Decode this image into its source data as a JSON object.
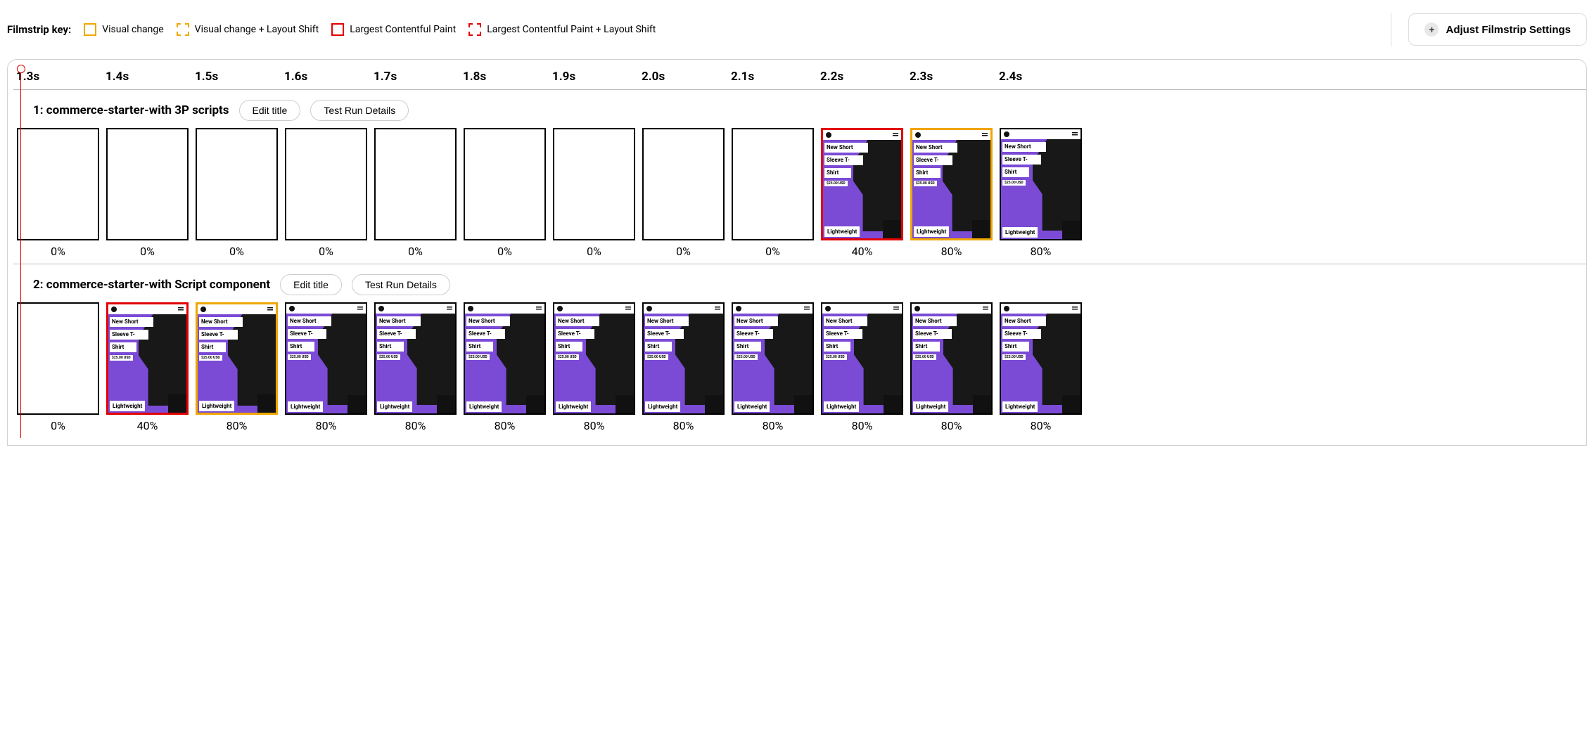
{
  "legend": {
    "title": "Filmstrip key:",
    "items": [
      {
        "label": "Visual change",
        "swatch": "swatch-orange-solid"
      },
      {
        "label": "Visual change + Layout Shift",
        "swatch": "swatch-orange-dashed"
      },
      {
        "label": "Largest Contentful Paint",
        "swatch": "swatch-red-solid"
      },
      {
        "label": "Largest Contentful Paint + Layout Shift",
        "swatch": "swatch-red-dashed"
      }
    ]
  },
  "settings_button": "Adjust Filmstrip Settings",
  "timeline": [
    "1.3s",
    "1.4s",
    "1.5s",
    "1.6s",
    "1.7s",
    "1.8s",
    "1.9s",
    "2.0s",
    "2.1s",
    "2.2s",
    "2.3s",
    "2.4s"
  ],
  "product": {
    "line1": "New Short",
    "line2": "Sleeve T-",
    "line3": "Shirt",
    "price": "$25.00 USD",
    "badge": "Lightweight"
  },
  "colors": {
    "accent_purple": "#7b4bd6",
    "lcp_red": "#e30000",
    "vc_orange": "#f0a500",
    "frame_black": "#000000"
  },
  "buttons": {
    "edit_title": "Edit title",
    "test_run_details": "Test Run Details"
  },
  "runs": [
    {
      "title": "1: commerce-starter-with 3P scripts",
      "frames": [
        {
          "pct": "0%",
          "content": false,
          "border": "black"
        },
        {
          "pct": "0%",
          "content": false,
          "border": "black"
        },
        {
          "pct": "0%",
          "content": false,
          "border": "black"
        },
        {
          "pct": "0%",
          "content": false,
          "border": "black"
        },
        {
          "pct": "0%",
          "content": false,
          "border": "black"
        },
        {
          "pct": "0%",
          "content": false,
          "border": "black"
        },
        {
          "pct": "0%",
          "content": false,
          "border": "black"
        },
        {
          "pct": "0%",
          "content": false,
          "border": "black"
        },
        {
          "pct": "0%",
          "content": false,
          "border": "black"
        },
        {
          "pct": "40%",
          "content": true,
          "border": "red"
        },
        {
          "pct": "80%",
          "content": true,
          "border": "orange"
        },
        {
          "pct": "80%",
          "content": true,
          "border": "black"
        }
      ]
    },
    {
      "title": "2: commerce-starter-with Script component",
      "frames": [
        {
          "pct": "0%",
          "content": false,
          "border": "black"
        },
        {
          "pct": "40%",
          "content": true,
          "border": "red"
        },
        {
          "pct": "80%",
          "content": true,
          "border": "orange"
        },
        {
          "pct": "80%",
          "content": true,
          "border": "black"
        },
        {
          "pct": "80%",
          "content": true,
          "border": "black"
        },
        {
          "pct": "80%",
          "content": true,
          "border": "black"
        },
        {
          "pct": "80%",
          "content": true,
          "border": "black"
        },
        {
          "pct": "80%",
          "content": true,
          "border": "black"
        },
        {
          "pct": "80%",
          "content": true,
          "border": "black"
        },
        {
          "pct": "80%",
          "content": true,
          "border": "black"
        },
        {
          "pct": "80%",
          "content": true,
          "border": "black"
        },
        {
          "pct": "80%",
          "content": true,
          "border": "black"
        }
      ]
    }
  ]
}
